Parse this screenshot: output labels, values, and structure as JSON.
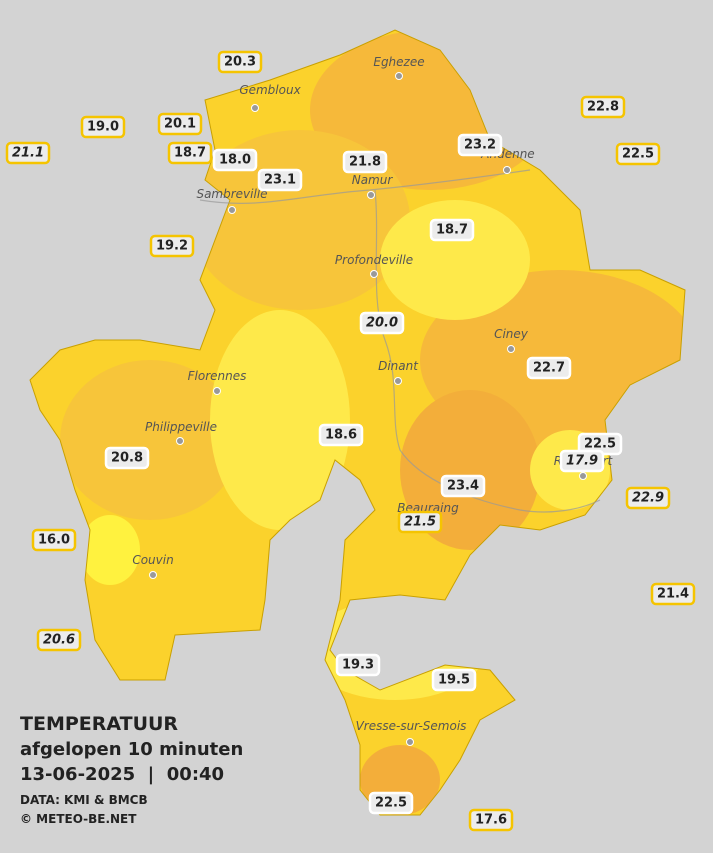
{
  "map": {
    "cities": [
      "Eghezee",
      "Gembloux",
      "Andenne",
      "Namur",
      "Sambreville",
      "Profondeville",
      "Ciney",
      "Dinant",
      "Florennes",
      "Philippeville",
      "Beauraing",
      "Rochefort",
      "Couvin",
      "Vresse-sur-Semois"
    ],
    "stations": [
      {
        "label": "20.3",
        "italic": false,
        "border": "#f5c400"
      },
      {
        "label": "19.0",
        "italic": false,
        "border": "#f5c400"
      },
      {
        "label": "21.1",
        "italic": true,
        "border": "#f5c400"
      },
      {
        "label": "20.1",
        "italic": false,
        "border": "#f5c400"
      },
      {
        "label": "18.7",
        "italic": false,
        "border": "#f5c400"
      },
      {
        "label": "18.0",
        "italic": false,
        "border": "#ffffff"
      },
      {
        "label": "23.1",
        "italic": false,
        "border": "#ffffff"
      },
      {
        "label": "21.8",
        "italic": false,
        "border": "#ffffff"
      },
      {
        "label": "23.2",
        "italic": false,
        "border": "#ffffff"
      },
      {
        "label": "22.8",
        "italic": false,
        "border": "#f5c400"
      },
      {
        "label": "22.5",
        "italic": false,
        "border": "#f5c400"
      },
      {
        "label": "19.2",
        "italic": false,
        "border": "#f5c400"
      },
      {
        "label": "18.7",
        "italic": false,
        "border": "#ffffff"
      },
      {
        "label": "20.0",
        "italic": true,
        "border": "#ffffff"
      },
      {
        "label": "22.7",
        "italic": false,
        "border": "#ffffff"
      },
      {
        "label": "18.6",
        "italic": false,
        "border": "#ffffff"
      },
      {
        "label": "20.8",
        "italic": false,
        "border": "#ffffff"
      },
      {
        "label": "22.5",
        "italic": false,
        "border": "#ffffff"
      },
      {
        "label": "17.9",
        "italic": true,
        "border": "#ffffff"
      },
      {
        "label": "22.9",
        "italic": true,
        "border": "#f5c400"
      },
      {
        "label": "23.4",
        "italic": false,
        "border": "#ffffff"
      },
      {
        "label": "21.5",
        "italic": true,
        "border": "#f5c400"
      },
      {
        "label": "16.0",
        "italic": false,
        "border": "#f5c400"
      },
      {
        "label": "21.4",
        "italic": false,
        "border": "#f5c400"
      },
      {
        "label": "20.6",
        "italic": true,
        "border": "#f5c400"
      },
      {
        "label": "19.3",
        "italic": false,
        "border": "#ffffff"
      },
      {
        "label": "19.5",
        "italic": false,
        "border": "#ffffff"
      },
      {
        "label": "22.5",
        "italic": false,
        "border": "#ffffff"
      },
      {
        "label": "17.6",
        "italic": false,
        "border": "#f5c400"
      }
    ]
  },
  "legend": {
    "title": "TEMPERATUUR",
    "subtitle": "afgelopen 10 minuten",
    "datetime": "13-06-2025  |  00:40",
    "source": "DATA: KMI & BMCB",
    "credit": "© METEO-BE.NET"
  }
}
